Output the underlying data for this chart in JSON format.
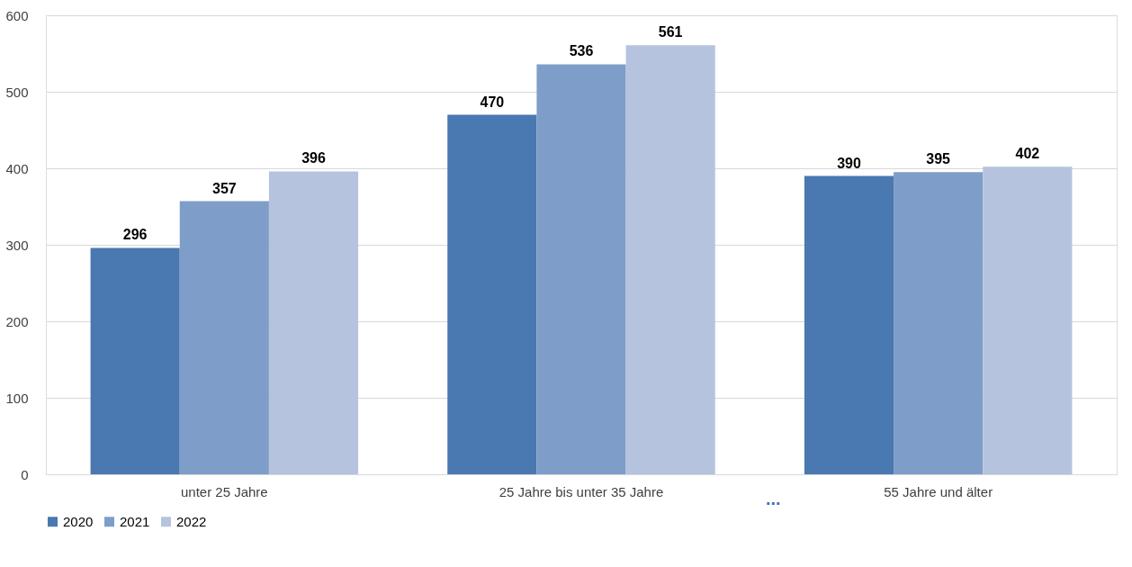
{
  "chart_data": {
    "type": "bar",
    "categories": [
      "unter 25 Jahre",
      "25 Jahre bis unter 35 Jahre",
      "55 Jahre und älter"
    ],
    "series": [
      {
        "name": "2020",
        "color": "#4a78b0",
        "values": [
          296,
          470,
          390
        ]
      },
      {
        "name": "2021",
        "color": "#7f9dc9",
        "values": [
          357,
          536,
          395
        ]
      },
      {
        "name": "2022",
        "color": "#b5c3de",
        "values": [
          396,
          561,
          402
        ]
      }
    ],
    "ylim": [
      0,
      600
    ],
    "yticks": [
      0,
      100,
      200,
      300,
      400,
      500,
      600
    ],
    "grid": "y",
    "legend": "bottom",
    "data_labels": true,
    "annotations": [
      "..."
    ]
  }
}
